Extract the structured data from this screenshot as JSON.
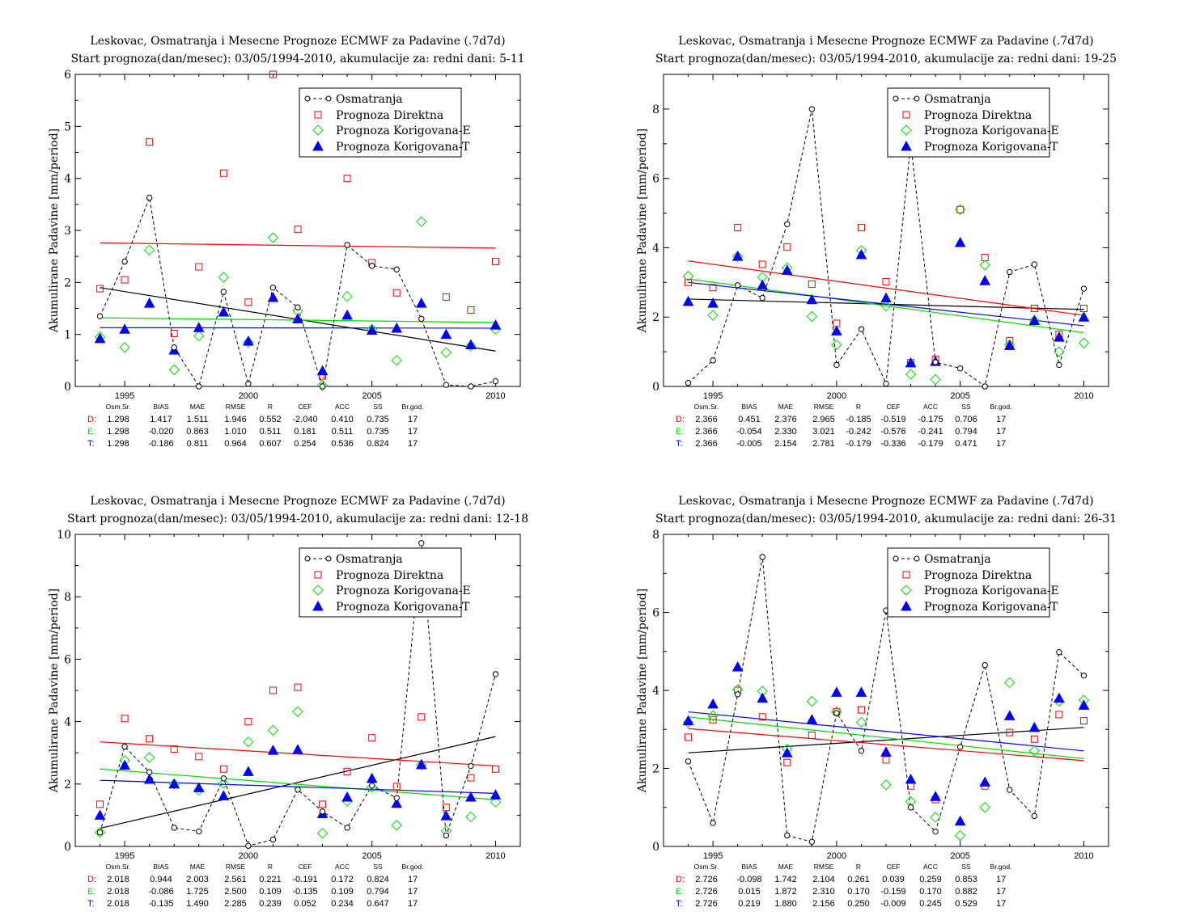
{
  "legend_labels": [
    "Osmatranja",
    "Prognoza Direktna",
    "Prognoza Korigovana-E",
    "Prognoza Korigovana-T"
  ],
  "ylabel": "Akumulirane Padavine [mm/period]",
  "stats_headers": [
    "Osm.Sr.",
    "BIAS",
    "MAE",
    "RMSE",
    "R",
    "CEF",
    "ACC",
    "SS",
    "Br.god."
  ],
  "series_colors": {
    "obs": "#000000",
    "D": "#ff0000",
    "E": "#00dd00",
    "T": "#0000ff"
  },
  "chart_data": [
    {
      "type": "scatter",
      "title": "Leskovac, Osmatranja i Mesecne Prognoze ECMWF za Padavine (.7d7d)",
      "subtitle": "Start prognoza(dan/mesec): 03/05/1994-2010, akumulacije za: redni dani: 5-11",
      "ylim": [
        0,
        6
      ],
      "yticks": [
        0,
        1,
        2,
        3,
        4,
        5,
        6
      ],
      "xlim": [
        1993,
        2011
      ],
      "xticks": [
        1995,
        2000,
        2005,
        2010
      ],
      "x": [
        1994,
        1995,
        1996,
        1997,
        1998,
        1999,
        2000,
        2001,
        2002,
        2003,
        2004,
        2005,
        2006,
        2007,
        2008,
        2009,
        2010
      ],
      "obs": [
        1.35,
        2.4,
        3.63,
        0.75,
        0.0,
        1.82,
        0.05,
        1.9,
        1.52,
        0.0,
        2.72,
        2.32,
        2.25,
        1.3,
        0.03,
        0.0,
        0.1
      ],
      "D": [
        1.88,
        2.05,
        4.7,
        1.02,
        2.3,
        4.1,
        1.62,
        6.0,
        3.02,
        0.2,
        4.0,
        2.38,
        1.8,
        null,
        1.72,
        1.47,
        2.4
      ],
      "E": [
        0.95,
        0.75,
        2.62,
        0.32,
        0.97,
        2.1,
        0.85,
        2.86,
        1.45,
        0.02,
        1.73,
        1.1,
        0.5,
        3.17,
        0.65,
        0.78,
        1.1
      ],
      "T": [
        0.92,
        1.1,
        1.6,
        0.7,
        1.13,
        1.43,
        0.87,
        1.71,
        1.3,
        0.3,
        1.37,
        1.08,
        1.12,
        1.6,
        1.0,
        0.8,
        1.18
      ],
      "trend": {
        "obs": [
          1.9,
          0.68
        ],
        "D": [
          2.76,
          2.66
        ],
        "E": [
          1.32,
          1.23
        ],
        "T": [
          1.13,
          1.12
        ]
      },
      "stats": [
        {
          "label": "D:",
          "values": [
            "1.298",
            "1.417",
            "1.511",
            "1.946",
            "0.552",
            "-2.040",
            "0.410",
            "0.735",
            "17"
          ]
        },
        {
          "label": "E:",
          "values": [
            "1.298",
            "-0.020",
            "0.863",
            "1.010",
            "0.511",
            "0.181",
            "0.511",
            "0.735",
            "17"
          ]
        },
        {
          "label": "T:",
          "values": [
            "1.298",
            "-0.186",
            "0.811",
            "0.964",
            "0.607",
            "0.254",
            "0.536",
            "0.824",
            "17"
          ]
        }
      ]
    },
    {
      "type": "scatter",
      "title": "Leskovac, Osmatranja i Mesecne Prognoze ECMWF za Padavine (.7d7d)",
      "subtitle": "Start prognoza(dan/mesec): 03/05/1994-2010, akumulacije za: redni dani: 19-25",
      "ylim": [
        0,
        9
      ],
      "yticks": [
        0,
        2,
        4,
        6,
        8
      ],
      "xlim": [
        1993,
        2011
      ],
      "xticks": [
        1995,
        2000,
        2005,
        2010
      ],
      "x": [
        1994,
        1995,
        1996,
        1997,
        1998,
        1999,
        2000,
        2001,
        2002,
        2003,
        2004,
        2005,
        2006,
        2007,
        2008,
        2009,
        2010
      ],
      "obs": [
        0.1,
        0.75,
        2.92,
        2.55,
        4.68,
        8.0,
        0.62,
        1.65,
        0.08,
        7.0,
        0.7,
        0.52,
        0.0,
        3.3,
        3.52,
        0.62,
        2.82
      ],
      "D": [
        3.0,
        2.85,
        4.58,
        3.52,
        4.02,
        2.95,
        1.82,
        4.58,
        3.02,
        0.68,
        0.78,
        5.1,
        3.72,
        1.32,
        2.25,
        1.5,
        2.25
      ],
      "E": [
        3.18,
        2.05,
        3.75,
        3.15,
        3.42,
        2.02,
        1.2,
        3.92,
        2.32,
        0.35,
        0.2,
        5.1,
        3.5,
        1.2,
        1.9,
        1.0,
        1.25
      ],
      "T": [
        2.45,
        2.4,
        3.75,
        2.92,
        3.35,
        2.5,
        1.6,
        3.8,
        2.55,
        0.68,
        0.72,
        4.15,
        3.05,
        1.18,
        1.9,
        1.42,
        2.0
      ],
      "trend": {
        "obs": [
          2.52,
          2.22
        ],
        "D": [
          3.62,
          2.05
        ],
        "E": [
          3.1,
          1.55
        ],
        "T": [
          3.0,
          1.75
        ]
      },
      "stats": [
        {
          "label": "D:",
          "values": [
            "2.366",
            "0.451",
            "2.376",
            "2.965",
            "-0.185",
            "-0.519",
            "-0.175",
            "0.706",
            "17"
          ]
        },
        {
          "label": "E:",
          "values": [
            "2.366",
            "-0.054",
            "2.330",
            "3.021",
            "-0.242",
            "-0.576",
            "-0.241",
            "0.794",
            "17"
          ]
        },
        {
          "label": "T:",
          "values": [
            "2.366",
            "-0.005",
            "2.154",
            "2.781",
            "-0.179",
            "-0.336",
            "-0.179",
            "0.471",
            "17"
          ]
        }
      ]
    },
    {
      "type": "scatter",
      "title": "Leskovac, Osmatranja i Mesecne Prognoze ECMWF za Padavine (.7d7d)",
      "subtitle": "Start prognoza(dan/mesec): 03/05/1994-2010, akumulacije za: redni dani: 12-18",
      "ylim": [
        0,
        10
      ],
      "yticks": [
        0,
        2,
        4,
        6,
        8,
        10
      ],
      "xlim": [
        1993,
        2011
      ],
      "xticks": [
        1995,
        2000,
        2005,
        2010
      ],
      "x": [
        1994,
        1995,
        1996,
        1997,
        1998,
        1999,
        2000,
        2001,
        2002,
        2003,
        2004,
        2005,
        2006,
        2007,
        2008,
        2009,
        2010
      ],
      "obs": [
        0.45,
        3.2,
        2.38,
        0.6,
        0.48,
        2.18,
        0.02,
        0.22,
        1.82,
        1.12,
        0.6,
        1.95,
        1.55,
        9.72,
        0.35,
        2.58,
        5.52
      ],
      "D": [
        1.35,
        4.1,
        3.45,
        3.12,
        2.88,
        2.48,
        4.0,
        5.0,
        5.1,
        1.35,
        2.4,
        3.48,
        1.92,
        4.15,
        1.25,
        2.2,
        2.48
      ],
      "E": [
        0.45,
        2.75,
        2.85,
        2.0,
        1.8,
        2.02,
        3.35,
        3.72,
        4.32,
        0.42,
        1.45,
        1.9,
        0.68,
        2.62,
        0.5,
        0.95,
        1.42
      ],
      "T": [
        1.0,
        2.6,
        2.15,
        2.0,
        1.88,
        1.62,
        2.4,
        3.08,
        3.1,
        1.05,
        1.58,
        2.18,
        1.38,
        2.62,
        0.98,
        1.58,
        1.65
      ],
      "trend": {
        "obs": [
          0.58,
          3.52
        ],
        "D": [
          3.35,
          2.58
        ],
        "E": [
          2.48,
          1.5
        ],
        "T": [
          2.12,
          1.7
        ]
      },
      "stats": [
        {
          "label": "D:",
          "values": [
            "2.018",
            "0.944",
            "2.003",
            "2.561",
            "0.221",
            "-0.191",
            "0.172",
            "0.824",
            "17"
          ]
        },
        {
          "label": "E:",
          "values": [
            "2.018",
            "-0.086",
            "1.725",
            "2.500",
            "0.109",
            "-0.135",
            "0.109",
            "0.794",
            "17"
          ]
        },
        {
          "label": "T:",
          "values": [
            "2.018",
            "-0.135",
            "1.490",
            "2.285",
            "0.239",
            "0.052",
            "0.234",
            "0.647",
            "17"
          ]
        }
      ]
    },
    {
      "type": "scatter",
      "title": "Leskovac, Osmatranja i Mesecne Prognoze ECMWF za Padavine (.7d7d)",
      "subtitle": "Start prognoza(dan/mesec): 03/05/1994-2010, akumulacije za: redni dani: 26-31",
      "ylim": [
        0,
        8
      ],
      "yticks": [
        0,
        2,
        4,
        6,
        8
      ],
      "xlim": [
        1993,
        2011
      ],
      "xticks": [
        1995,
        2000,
        2005,
        2010
      ],
      "x": [
        1994,
        1995,
        1996,
        1997,
        1998,
        1999,
        2000,
        2001,
        2002,
        2003,
        2004,
        2005,
        2006,
        2007,
        2008,
        2009,
        2010
      ],
      "obs": [
        2.18,
        0.6,
        3.9,
        7.42,
        0.28,
        0.12,
        3.42,
        2.45,
        6.05,
        1.0,
        0.38,
        2.55,
        4.65,
        1.45,
        0.78,
        4.98,
        4.38
      ],
      "D": [
        2.8,
        3.25,
        4.0,
        3.32,
        2.15,
        2.85,
        3.45,
        3.5,
        2.22,
        1.55,
        1.2,
        null,
        1.55,
        2.92,
        2.75,
        3.38,
        3.22
      ],
      "E": [
        3.18,
        3.35,
        4.02,
        3.98,
        2.5,
        3.72,
        3.45,
        3.18,
        1.58,
        1.15,
        0.75,
        0.28,
        1.0,
        4.2,
        2.45,
        3.72,
        3.75
      ],
      "T": [
        3.22,
        3.65,
        4.6,
        3.8,
        2.4,
        3.25,
        3.95,
        3.95,
        2.42,
        1.72,
        1.28,
        0.65,
        1.65,
        3.35,
        3.05,
        3.8,
        3.62
      ],
      "trend": {
        "obs": [
          2.4,
          3.05
        ],
        "D": [
          3.02,
          2.2
        ],
        "E": [
          3.32,
          2.25
        ],
        "T": [
          3.45,
          2.45
        ]
      },
      "stats": [
        {
          "label": "D:",
          "values": [
            "2.726",
            "-0.098",
            "1.742",
            "2.104",
            "0.261",
            "0.039",
            "0.259",
            "0.853",
            "17"
          ]
        },
        {
          "label": "E:",
          "values": [
            "2.726",
            "0.015",
            "1.872",
            "2.310",
            "0.170",
            "-0.159",
            "0.170",
            "0.882",
            "17"
          ]
        },
        {
          "label": "T:",
          "values": [
            "2.726",
            "0.219",
            "1.880",
            "2.156",
            "0.250",
            "-0.009",
            "0.245",
            "0.529",
            "17"
          ]
        }
      ]
    }
  ]
}
